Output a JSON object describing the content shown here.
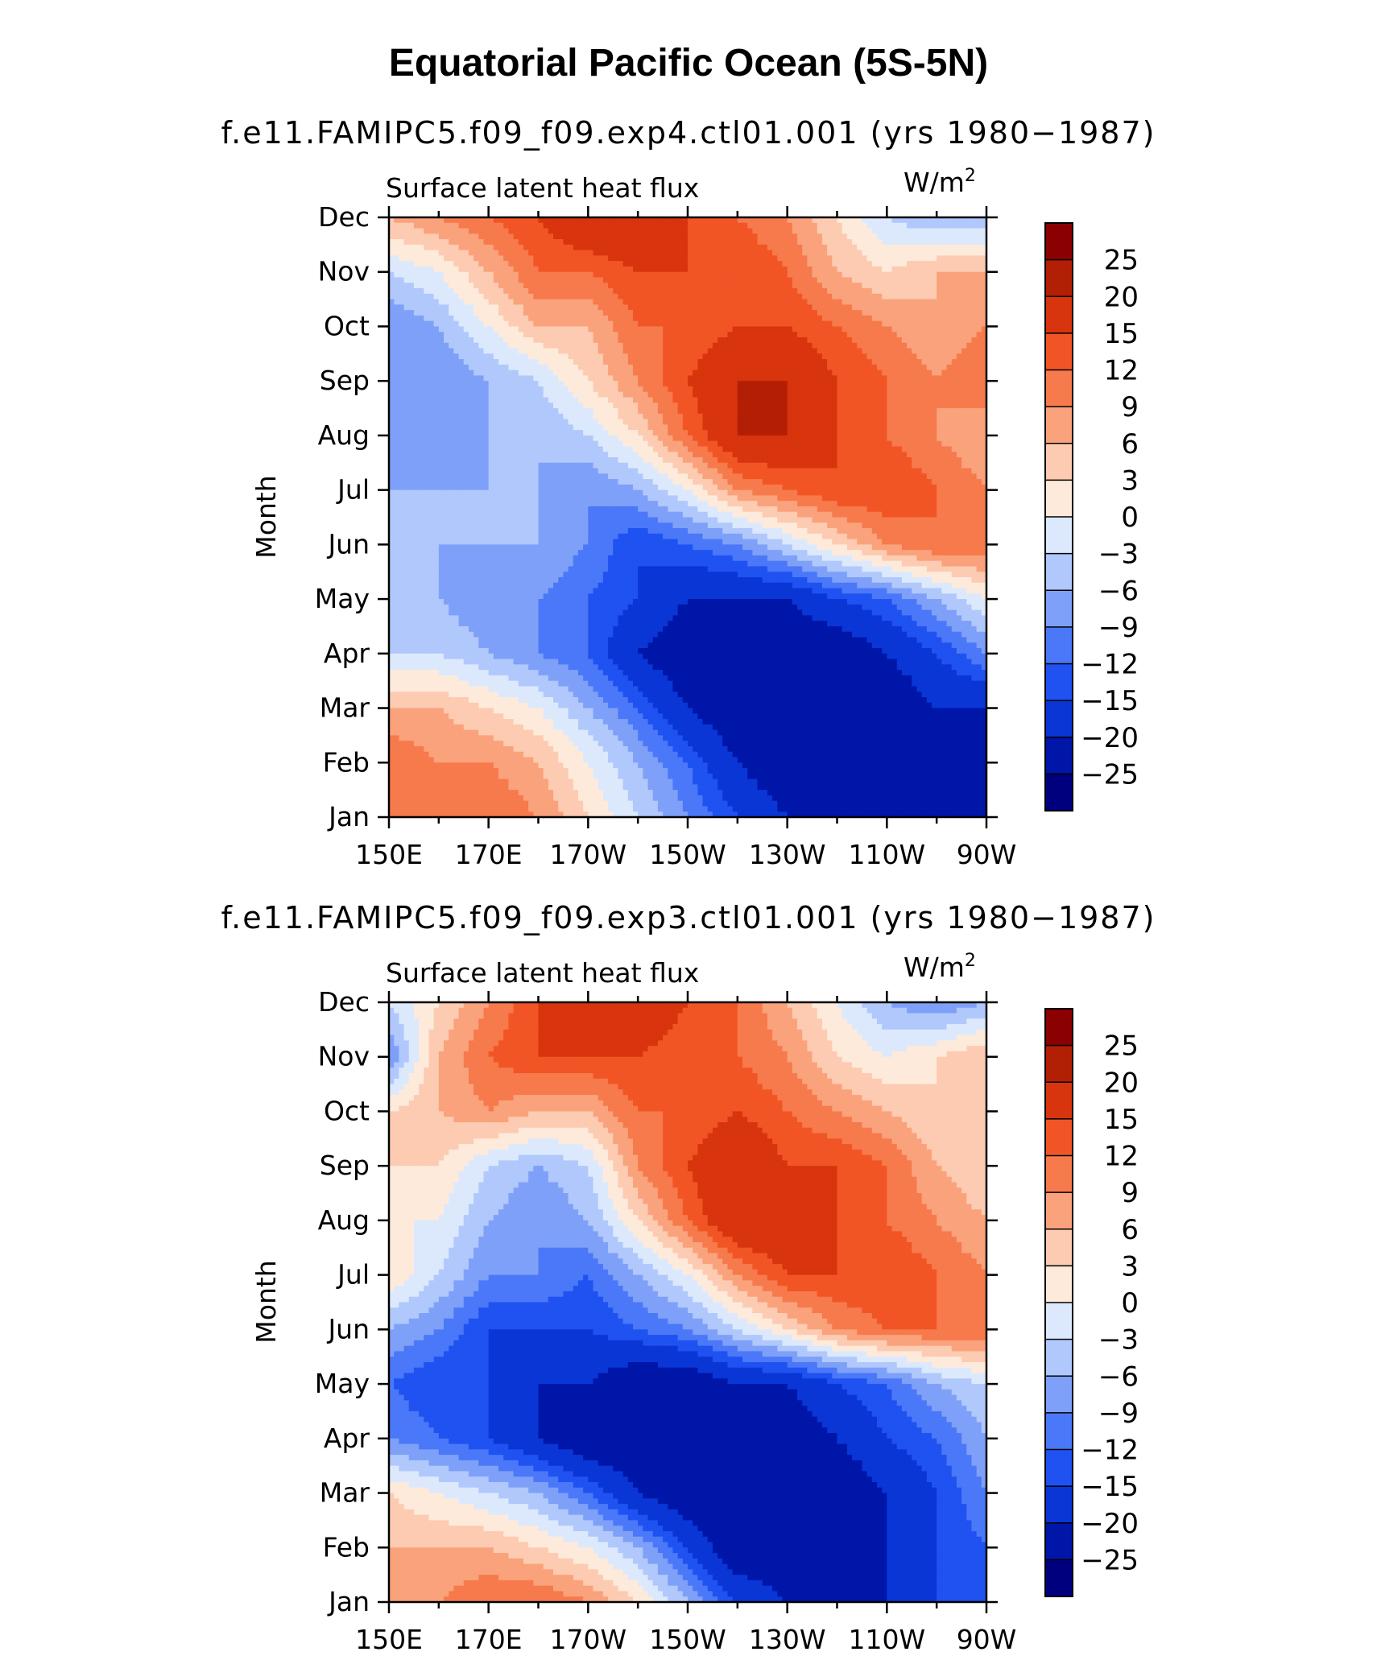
{
  "figure_title": "Equatorial Pacific Ocean (5S-5N)",
  "colormap": [
    "#00007f",
    "#0016a8",
    "#0a36d6",
    "#1f52f0",
    "#4a78f8",
    "#7fa0f8",
    "#b0c8fb",
    "#dce9fd",
    "#fdeadb",
    "#fccbb1",
    "#faa27c",
    "#f67a4c",
    "#f25525",
    "#d8340d",
    "#b31f05",
    "#8b0000"
  ],
  "chart_data": [
    {
      "type": "heatmap",
      "title": "f.e11.FAMIPC5.f09_f09.exp4.ctl01.001 (yrs 1980−1987)",
      "left_string": "Surface latent heat flux",
      "units_base": "W/m",
      "units_exp": "2",
      "ylabel": "Month",
      "xlabel": "",
      "x_ticks": [
        "150E",
        "170E",
        "170W",
        "150W",
        "130W",
        "110W",
        "90W"
      ],
      "x_lon_range": [
        150,
        270
      ],
      "y_ticks": [
        "Jan",
        "Feb",
        "Mar",
        "Apr",
        "May",
        "Jun",
        "Jul",
        "Aug",
        "Sep",
        "Oct",
        "Nov",
        "Dec"
      ],
      "levels": [
        -25,
        -20,
        -15,
        -12,
        -9,
        -6,
        -3,
        0,
        3,
        6,
        9,
        12,
        15,
        20,
        25
      ],
      "level_labels": [
        "25",
        "20",
        "15",
        "12",
        "9",
        "6",
        "3",
        "0",
        "−3",
        "−6",
        "−9",
        "−12",
        "−15",
        "−20",
        "−25"
      ],
      "grid_lons": [
        150,
        160,
        170,
        180,
        190,
        200,
        210,
        220,
        230,
        240,
        250,
        260,
        270
      ],
      "values": [
        [
          9,
          12,
          12,
          9,
          3,
          -3,
          -9,
          -15,
          -20,
          -20,
          -20,
          -25,
          -25
        ],
        [
          12,
          9,
          9,
          6,
          0,
          -6,
          -12,
          -20,
          -25,
          -25,
          -25,
          -25,
          -20
        ],
        [
          6,
          6,
          3,
          0,
          -6,
          -12,
          -20,
          -25,
          -25,
          -25,
          -25,
          -20,
          -20
        ],
        [
          -3,
          -3,
          -6,
          -9,
          -12,
          -20,
          -25,
          -25,
          -25,
          -25,
          -20,
          -15,
          -9
        ],
        [
          -6,
          -6,
          -9,
          -9,
          -12,
          -15,
          -20,
          -20,
          -20,
          -15,
          -12,
          -6,
          0
        ],
        [
          -6,
          -6,
          -6,
          -6,
          -9,
          -15,
          -12,
          -9,
          -3,
          3,
          9,
          12,
          12
        ],
        [
          -6,
          -6,
          -6,
          -6,
          -9,
          -6,
          0,
          9,
          12,
          15,
          15,
          12,
          9
        ],
        [
          -9,
          -9,
          -6,
          -6,
          -3,
          3,
          12,
          20,
          20,
          15,
          12,
          9,
          6
        ],
        [
          -9,
          -9,
          -6,
          -3,
          3,
          9,
          15,
          20,
          20,
          15,
          12,
          9,
          12
        ],
        [
          -9,
          -6,
          0,
          6,
          6,
          12,
          12,
          15,
          15,
          12,
          9,
          6,
          9
        ],
        [
          -3,
          0,
          6,
          12,
          12,
          15,
          15,
          15,
          12,
          6,
          3,
          6,
          6
        ],
        [
          6,
          9,
          12,
          15,
          20,
          20,
          15,
          12,
          9,
          3,
          -3,
          -6,
          -6
        ]
      ]
    },
    {
      "type": "heatmap",
      "title": "f.e11.FAMIPC5.f09_f09.exp3.ctl01.001 (yrs 1980−1987)",
      "left_string": "Surface latent heat flux",
      "units_base": "W/m",
      "units_exp": "2",
      "ylabel": "Month",
      "xlabel": "",
      "x_ticks": [
        "150E",
        "170E",
        "170W",
        "150W",
        "130W",
        "110W",
        "90W"
      ],
      "x_lon_range": [
        150,
        270
      ],
      "y_ticks": [
        "Jan",
        "Feb",
        "Mar",
        "Apr",
        "May",
        "Jun",
        "Jul",
        "Aug",
        "Sep",
        "Oct",
        "Nov",
        "Dec"
      ],
      "levels": [
        -25,
        -20,
        -15,
        -12,
        -9,
        -6,
        -3,
        0,
        3,
        6,
        9,
        12,
        15,
        20,
        25
      ],
      "level_labels": [
        "25",
        "20",
        "15",
        "12",
        "9",
        "6",
        "3",
        "0",
        "−3",
        "−6",
        "−9",
        "−12",
        "−15",
        "−20",
        "−25"
      ],
      "grid_lons": [
        150,
        160,
        170,
        180,
        190,
        200,
        210,
        220,
        230,
        240,
        250,
        260,
        270
      ],
      "values": [
        [
          6,
          9,
          12,
          12,
          9,
          3,
          -6,
          -15,
          -20,
          -25,
          -20,
          -15,
          -12
        ],
        [
          6,
          6,
          6,
          3,
          0,
          -6,
          -15,
          -25,
          -25,
          -25,
          -20,
          -15,
          -12
        ],
        [
          3,
          0,
          -3,
          -6,
          -12,
          -20,
          -25,
          -25,
          -25,
          -25,
          -20,
          -15,
          -9
        ],
        [
          -9,
          -12,
          -15,
          -20,
          -25,
          -25,
          -25,
          -25,
          -25,
          -20,
          -15,
          -12,
          -6
        ],
        [
          -12,
          -15,
          -15,
          -20,
          -20,
          -25,
          -25,
          -20,
          -20,
          -15,
          -12,
          -6,
          -3
        ],
        [
          -6,
          -9,
          -15,
          -15,
          -15,
          -12,
          -9,
          -3,
          3,
          9,
          12,
          12,
          12
        ],
        [
          3,
          -3,
          -9,
          -9,
          -12,
          -6,
          0,
          9,
          15,
          15,
          15,
          12,
          9
        ],
        [
          0,
          0,
          -6,
          -9,
          -6,
          3,
          12,
          20,
          20,
          15,
          12,
          9,
          6
        ],
        [
          3,
          3,
          -3,
          -6,
          -3,
          9,
          15,
          20,
          15,
          15,
          12,
          6,
          3
        ],
        [
          3,
          6,
          9,
          6,
          6,
          12,
          12,
          15,
          12,
          9,
          6,
          3,
          3
        ],
        [
          -9,
          6,
          12,
          15,
          15,
          15,
          12,
          12,
          9,
          3,
          0,
          3,
          6
        ],
        [
          -3,
          3,
          9,
          15,
          20,
          20,
          15,
          12,
          6,
          0,
          -6,
          -9,
          -6
        ]
      ]
    }
  ]
}
